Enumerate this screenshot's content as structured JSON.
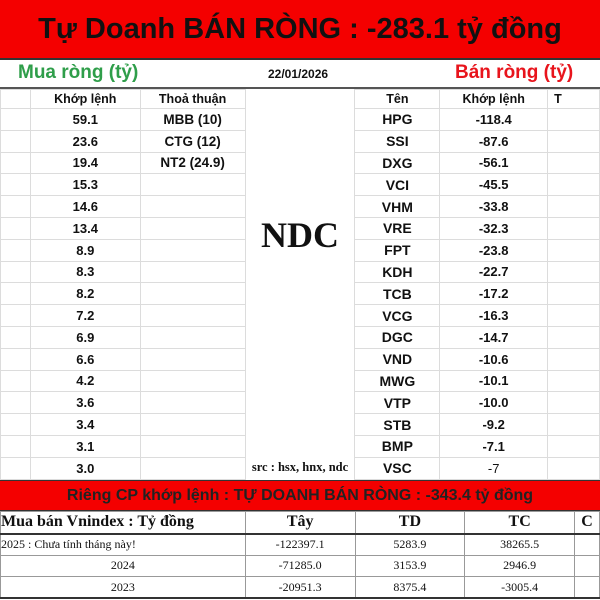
{
  "title": "Tự Doanh BÁN RÒNG : -283.1 tỷ đồng",
  "buy_label": "Mua ròng (tỷ)",
  "date": "22/01/2026",
  "sell_label": "Bán ròng (tỷ)",
  "watermark": "NDC",
  "source": "src : hsx, hnx, ndc",
  "headers": {
    "buy_match": "Khớp lệnh",
    "buy_deal": "Thoả thuận",
    "sell_name": "Tên",
    "sell_match": "Khớp lệnh",
    "sell_deal": "T"
  },
  "buy_match": [
    "59.1",
    "23.6",
    "19.4",
    "15.3",
    "14.6",
    "13.4",
    "8.9",
    "8.3",
    "8.2",
    "7.2",
    "6.9",
    "6.6",
    "4.2",
    "3.6",
    "3.4",
    "3.1",
    "3.0"
  ],
  "buy_deal": [
    "MBB (10)",
    "CTG (12)",
    "NT2 (24.9)"
  ],
  "sell_names": [
    "HPG",
    "SSI",
    "DXG",
    "VCI",
    "VHM",
    "VRE",
    "FPT",
    "KDH",
    "TCB",
    "VCG",
    "DGC",
    "VND",
    "MWG",
    "VTP",
    "STB",
    "BMP",
    "VSC"
  ],
  "sell_match": [
    "-118.4",
    "-87.6",
    "-56.1",
    "-45.5",
    "-33.8",
    "-32.3",
    "-23.8",
    "-22.7",
    "-17.2",
    "-16.3",
    "-14.7",
    "-10.6",
    "-10.1",
    "-10.0",
    "-9.2",
    "-7.1",
    "-7"
  ],
  "summary": "Riêng CP khớp lệnh : TỰ DOANH BÁN RÒNG : -343.4 tỷ đồng",
  "yearly": {
    "headers": [
      "Mua bán Vnindex : Tỷ đồng",
      "Tây",
      "TD",
      "TC",
      "C"
    ],
    "rows": [
      [
        "2025 : Chưa tính tháng này!",
        "-122397.1",
        "5283.9",
        "38265.5"
      ],
      [
        "2024",
        "-71285.0",
        "3153.9",
        "2946.9"
      ],
      [
        "2023",
        "-20951.3",
        "8375.4",
        "-3005.4"
      ]
    ]
  }
}
